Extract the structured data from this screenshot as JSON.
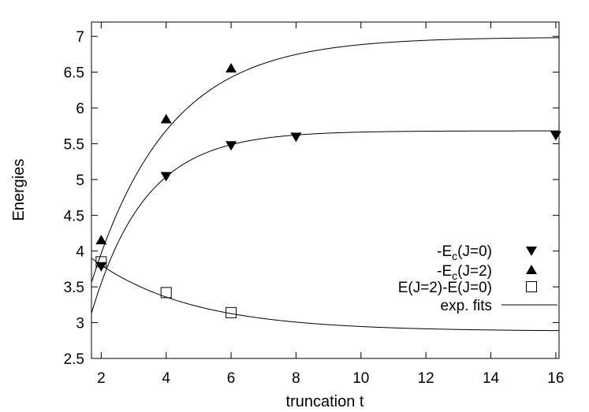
{
  "chart_data": {
    "type": "scatter",
    "title": "",
    "xlabel": "truncation t",
    "ylabel": "Energies",
    "xlim": [
      1.7,
      16.1
    ],
    "ylim": [
      2.5,
      7.2
    ],
    "xticks": [
      "2",
      "4",
      "6",
      "8",
      "10",
      "12",
      "14",
      "16"
    ],
    "yticks": [
      "2.5",
      "3",
      "3.5",
      "4",
      "4.5",
      "5",
      "5.5",
      "6",
      "6.5",
      "7"
    ],
    "grid": false,
    "legend_position": "right",
    "series": [
      {
        "name": "-E_c(J=0)",
        "name_main": "-E",
        "name_sub": "c",
        "name_rest": "(J=0)",
        "marker": "triangle-down",
        "color": "#000000",
        "x": [
          2,
          4,
          6,
          8,
          16
        ],
        "y": [
          3.79,
          5.05,
          5.48,
          5.6,
          5.62
        ],
        "fit": {
          "a": 5.68,
          "b": 2.55,
          "k": 0.6,
          "x0": 1.7
        }
      },
      {
        "name": "-E_c(J=2)",
        "name_main": "-E",
        "name_sub": "c",
        "name_rest": "(J=2)",
        "marker": "triangle-up",
        "color": "#000000",
        "x": [
          2,
          4,
          6
        ],
        "y": [
          4.15,
          5.84,
          6.55
        ],
        "fit": {
          "a": 6.99,
          "b": 3.43,
          "k": 0.42,
          "x0": 1.7
        }
      },
      {
        "name": "E(J=2)-E(J=0)",
        "name_main": "E(J=2)-E(J=0)",
        "name_sub": "",
        "name_rest": "",
        "marker": "square-open",
        "color": "#000000",
        "x": [
          2,
          4,
          6
        ],
        "y": [
          3.85,
          3.42,
          3.14
        ],
        "fit": {
          "a": 2.88,
          "b": -1.02,
          "k": 0.33,
          "x0": 1.7
        }
      }
    ],
    "fit_legend": "exp. fits"
  }
}
